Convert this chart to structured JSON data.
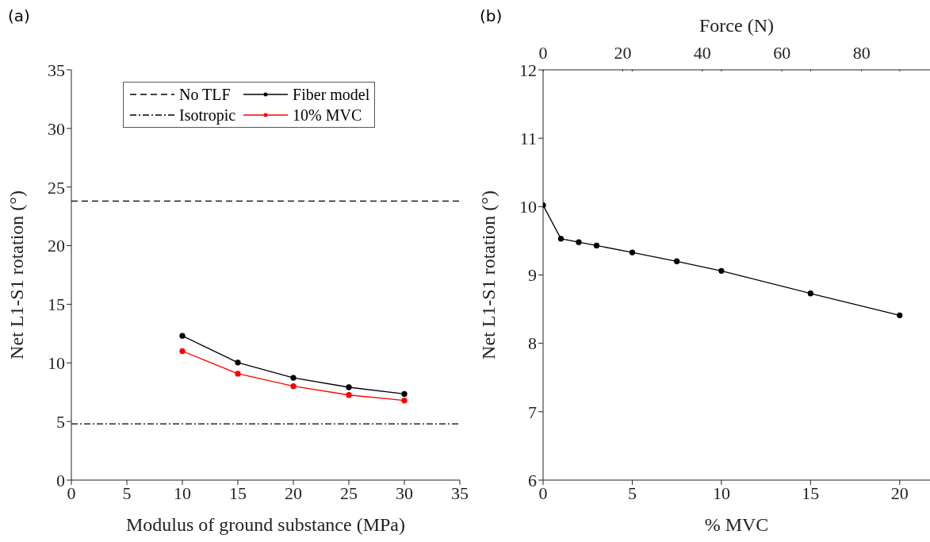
{
  "chart_data": [
    {
      "type": "line",
      "title": "(a)",
      "xlabel": "Modulus of ground substance (MPa)",
      "ylabel": "Net L1-S1 rotation (°)",
      "x": [
        10,
        15,
        20,
        25,
        30
      ],
      "series": [
        {
          "name": "Fiber model",
          "color": "#000000",
          "values": [
            12.31,
            10.03,
            8.73,
            7.92,
            7.35
          ]
        },
        {
          "name": "10% MVC",
          "color": "#ff0000",
          "values": [
            11.0,
            9.08,
            8.01,
            7.26,
            6.79
          ]
        }
      ],
      "ref_lines": [
        {
          "axis": "y",
          "value": 23.8,
          "label": "No TLF",
          "color": "#000000",
          "line_style": "dashed"
        },
        {
          "axis": "y",
          "value": 4.8,
          "label": "Isotropic",
          "color": "#000000",
          "line_style": "dashdot"
        }
      ],
      "xlim": [
        0,
        35
      ],
      "xticks": [
        0,
        5,
        10,
        15,
        20,
        25,
        30,
        35
      ],
      "ylim": [
        0,
        35
      ],
      "yticks": [
        0,
        5,
        10,
        15,
        20,
        25,
        30,
        35
      ],
      "marker": "circle",
      "line_style": "solid",
      "legend": "top",
      "grid": false
    },
    {
      "type": "line",
      "title": "(b)",
      "xlabel": "% MVC",
      "x2label": "Force (N)",
      "ylabel": "Net L1-S1 rotation (°)",
      "x": [
        0,
        1,
        2,
        3,
        5,
        7.5,
        10,
        15,
        20
      ],
      "series": [
        {
          "color": "#000000",
          "values": [
            10.02,
            9.53,
            9.48,
            9.43,
            9.33,
            9.2,
            9.06,
            8.73,
            8.41
          ]
        }
      ],
      "xlim": [
        0,
        21.7
      ],
      "xticks": [
        0,
        5,
        10,
        15,
        20
      ],
      "x2lim": [
        0,
        97.2
      ],
      "x2ticks": [
        0,
        20,
        40,
        60,
        80,
        {
          "value": 22.4,
          "label": null
        },
        {
          "value": 44.8,
          "label": null
        },
        {
          "value": 67.2,
          "label": null
        },
        {
          "value": 89.6,
          "label": null
        }
      ],
      "ylim": [
        6,
        12
      ],
      "yticks": [
        6,
        7,
        8,
        9,
        10,
        11,
        12
      ],
      "marker": "circle",
      "line_style": "solid",
      "legend": false,
      "grid": false
    }
  ]
}
